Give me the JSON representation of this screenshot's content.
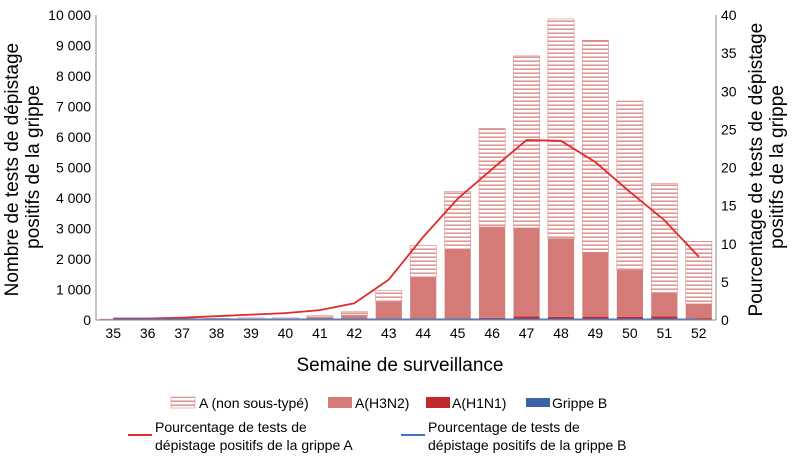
{
  "chart_data": {
    "type": "bar",
    "stacked": true,
    "xlabel": "Semaine de surveillance",
    "ylabel": "Nombre de tests de dépistage positifs de la grippe",
    "y2label": "Pourcentage de tests de dépistage positifs de la grippe",
    "ylim": [
      0,
      10000
    ],
    "y2lim": [
      0,
      40
    ],
    "yticks": [
      "0",
      "1 000",
      "2 000",
      "3 000",
      "4 000",
      "5 000",
      "6 000",
      "7 000",
      "8 000",
      "9 000",
      "10 000"
    ],
    "y2ticks": [
      "0",
      "5",
      "10",
      "15",
      "20",
      "25",
      "30",
      "35",
      "40"
    ],
    "categories": [
      "35",
      "36",
      "37",
      "38",
      "39",
      "40",
      "41",
      "42",
      "43",
      "44",
      "45",
      "46",
      "47",
      "48",
      "49",
      "50",
      "51",
      "52"
    ],
    "grid": false,
    "legend_position": "bottom",
    "bar_series": [
      {
        "name": "A (non sous-typé)",
        "color": "#d98a87",
        "pattern": "hatched",
        "values": [
          20,
          20,
          30,
          30,
          40,
          40,
          70,
          110,
          380,
          1030,
          1890,
          3230,
          5640,
          7200,
          6950,
          5550,
          3580,
          2050
        ]
      },
      {
        "name": "A(H3N2)",
        "color": "#d47b78",
        "values": [
          10,
          10,
          20,
          20,
          30,
          30,
          70,
          160,
          570,
          1380,
          2290,
          2980,
          2900,
          2570,
          2110,
          1530,
          780,
          470
        ]
      },
      {
        "name": "A(H1N1)",
        "color": "#c0282d",
        "values": [
          0,
          0,
          0,
          0,
          0,
          0,
          0,
          0,
          10,
          20,
          30,
          50,
          100,
          80,
          90,
          80,
          100,
          40
        ]
      },
      {
        "name": "Grippe B",
        "color": "#3c62aa",
        "values": [
          0,
          0,
          0,
          0,
          0,
          0,
          0,
          0,
          10,
          10,
          10,
          20,
          20,
          20,
          20,
          20,
          20,
          20
        ]
      }
    ],
    "line_series": [
      {
        "name": "Pourcentage de tests de dépistage positifs de la grippe A",
        "color": "#e02c2c",
        "axis": "right",
        "values": [
          0.2,
          0.2,
          0.3,
          0.5,
          0.7,
          0.9,
          1.3,
          2.2,
          5.3,
          10.9,
          15.9,
          19.8,
          23.6,
          23.5,
          20.7,
          16.8,
          13.1,
          8.3
        ]
      },
      {
        "name": "Pourcentage de tests de dépistage positifs de la grippe B",
        "color": "#4472c4",
        "axis": "right",
        "values": [
          0.1,
          0.1,
          0.1,
          0.1,
          0.1,
          0.1,
          0.1,
          0.1,
          0.1,
          0.1,
          0.1,
          0.1,
          0.1,
          0.1,
          0.1,
          0.1,
          0.1,
          0.1
        ]
      }
    ]
  }
}
